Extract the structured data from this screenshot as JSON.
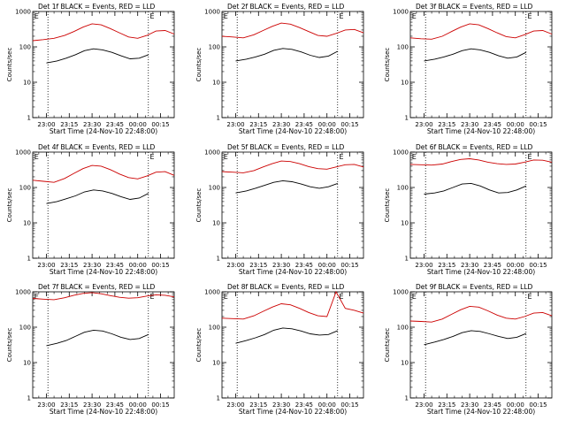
{
  "chart_data": [
    {
      "type": "line",
      "title": "Det 1f BLACK = Events, RED = LLD",
      "xlabel": "Start Time (24-Nov-10 22:48:00)",
      "ylabel": "Counts/sec",
      "yscale": "log",
      "ylim": [
        1,
        1000
      ],
      "xlim": [
        "22:51",
        "00:24"
      ],
      "xticks": [
        "23:00",
        "23:15",
        "23:30",
        "23:45",
        "00:00",
        "00:15"
      ],
      "yticks": [
        "1",
        "10",
        "100",
        "1000"
      ],
      "vlines": [
        "23:01",
        "00:07"
      ],
      "markers": [
        {
          "text": "E",
          "x": "22:52"
        },
        {
          "text": "E",
          "x": "00:08"
        }
      ],
      "series": [
        {
          "name": "BLACK = Events",
          "color": "#000000",
          "x": [
            "23:00",
            "23:07",
            "23:13",
            "23:19",
            "23:25",
            "23:31",
            "23:37",
            "23:43",
            "23:49",
            "23:55",
            "00:01",
            "00:07"
          ],
          "values": [
            35,
            40,
            48,
            60,
            78,
            88,
            82,
            70,
            56,
            46,
            48,
            60
          ]
        },
        {
          "name": "RED = LLD",
          "color": "#cc0000",
          "x": [
            "22:51",
            "22:58",
            "23:05",
            "23:12",
            "23:18",
            "23:24",
            "23:30",
            "23:36",
            "23:42",
            "23:48",
            "23:54",
            "00:00",
            "00:06",
            "00:12",
            "00:18",
            "00:24"
          ],
          "values": [
            150,
            160,
            175,
            210,
            270,
            360,
            450,
            420,
            330,
            250,
            190,
            175,
            210,
            280,
            290,
            230
          ]
        }
      ]
    },
    {
      "type": "line",
      "title": "Det 2f BLACK = Events, RED = LLD",
      "xlabel": "Start Time (24-Nov-10 22:48:00)",
      "ylabel": "Counts/sec",
      "yscale": "log",
      "ylim": [
        1,
        1000
      ],
      "xlim": [
        "22:51",
        "00:24"
      ],
      "xticks": [
        "23:00",
        "23:15",
        "23:30",
        "23:45",
        "00:00",
        "00:15"
      ],
      "yticks": [
        "1",
        "10",
        "100",
        "1000"
      ],
      "vlines": [
        "23:01",
        "00:07"
      ],
      "markers": [
        {
          "text": "E",
          "x": "22:52"
        },
        {
          "text": "E",
          "x": "00:08"
        }
      ],
      "series": [
        {
          "name": "BLACK = Events",
          "color": "#000000",
          "x": [
            "23:00",
            "23:07",
            "23:13",
            "23:19",
            "23:25",
            "23:31",
            "23:37",
            "23:43",
            "23:49",
            "23:55",
            "00:01",
            "00:07"
          ],
          "values": [
            40,
            45,
            52,
            62,
            80,
            90,
            85,
            72,
            58,
            50,
            55,
            75
          ]
        },
        {
          "name": "RED = LLD",
          "color": "#cc0000",
          "x": [
            "22:51",
            "22:58",
            "23:05",
            "23:12",
            "23:18",
            "23:24",
            "23:30",
            "23:36",
            "23:42",
            "23:48",
            "23:54",
            "00:00",
            "00:06",
            "00:12",
            "00:18",
            "00:24"
          ],
          "values": [
            200,
            190,
            180,
            220,
            290,
            380,
            470,
            440,
            350,
            270,
            210,
            200,
            240,
            300,
            310,
            250
          ]
        }
      ]
    },
    {
      "type": "line",
      "title": "Det 3f BLACK = Events, RED = LLD",
      "xlabel": "Start Time (24-Nov-10 22:48:00)",
      "ylabel": "Counts/sec",
      "yscale": "log",
      "ylim": [
        1,
        1000
      ],
      "xlim": [
        "22:51",
        "00:24"
      ],
      "xticks": [
        "23:00",
        "23:15",
        "23:30",
        "23:45",
        "00:00",
        "00:15"
      ],
      "yticks": [
        "1",
        "10",
        "100",
        "1000"
      ],
      "vlines": [
        "23:01",
        "00:07"
      ],
      "markers": [
        {
          "text": "E",
          "x": "22:52"
        },
        {
          "text": "E",
          "x": "00:08"
        }
      ],
      "series": [
        {
          "name": "BLACK = Events",
          "color": "#000000",
          "x": [
            "23:00",
            "23:07",
            "23:13",
            "23:19",
            "23:25",
            "23:31",
            "23:37",
            "23:43",
            "23:49",
            "23:55",
            "00:01",
            "00:07"
          ],
          "values": [
            40,
            45,
            52,
            62,
            78,
            88,
            82,
            70,
            56,
            48,
            52,
            70
          ]
        },
        {
          "name": "RED = LLD",
          "color": "#cc0000",
          "x": [
            "22:51",
            "22:58",
            "23:05",
            "23:12",
            "23:18",
            "23:24",
            "23:30",
            "23:36",
            "23:42",
            "23:48",
            "23:54",
            "00:00",
            "00:06",
            "00:12",
            "00:18",
            "00:24"
          ],
          "values": [
            180,
            170,
            165,
            200,
            270,
            360,
            450,
            420,
            330,
            250,
            195,
            180,
            220,
            280,
            290,
            230
          ]
        }
      ]
    },
    {
      "type": "line",
      "title": "Det 4f BLACK = Events, RED = LLD",
      "xlabel": "Start Time (24-Nov-10 22:48:00)",
      "ylabel": "Counts/sec",
      "yscale": "log",
      "ylim": [
        1,
        1000
      ],
      "xlim": [
        "22:51",
        "00:24"
      ],
      "xticks": [
        "23:00",
        "23:15",
        "23:30",
        "23:45",
        "00:00",
        "00:15"
      ],
      "yticks": [
        "1",
        "10",
        "100",
        "1000"
      ],
      "vlines": [
        "23:01",
        "00:07"
      ],
      "markers": [
        {
          "text": "E",
          "x": "22:52"
        },
        {
          "text": "E",
          "x": "00:08"
        }
      ],
      "series": [
        {
          "name": "BLACK = Events",
          "color": "#000000",
          "x": [
            "23:00",
            "23:07",
            "23:13",
            "23:19",
            "23:25",
            "23:31",
            "23:37",
            "23:43",
            "23:49",
            "23:55",
            "00:01",
            "00:07"
          ],
          "values": [
            35,
            40,
            48,
            58,
            75,
            85,
            80,
            68,
            55,
            46,
            50,
            68
          ]
        },
        {
          "name": "RED = LLD",
          "color": "#cc0000",
          "x": [
            "22:51",
            "22:58",
            "23:05",
            "23:12",
            "23:18",
            "23:24",
            "23:30",
            "23:36",
            "23:42",
            "23:48",
            "23:54",
            "00:00",
            "00:06",
            "00:12",
            "00:18",
            "00:24"
          ],
          "values": [
            160,
            150,
            140,
            180,
            250,
            340,
            420,
            400,
            320,
            240,
            190,
            175,
            210,
            270,
            280,
            220
          ]
        }
      ]
    },
    {
      "type": "line",
      "title": "Det 5f BLACK = Events, RED = LLD",
      "xlabel": "Start Time (24-Nov-10 22:48:00)",
      "ylabel": "Counts/sec",
      "yscale": "log",
      "ylim": [
        1,
        1000
      ],
      "xlim": [
        "22:51",
        "00:24"
      ],
      "xticks": [
        "23:00",
        "23:15",
        "23:30",
        "23:45",
        "00:00",
        "00:15"
      ],
      "yticks": [
        "1",
        "10",
        "100",
        "1000"
      ],
      "vlines": [
        "23:01",
        "00:07"
      ],
      "markers": [
        {
          "text": "E",
          "x": "22:52"
        },
        {
          "text": "E",
          "x": "00:08"
        }
      ],
      "series": [
        {
          "name": "BLACK = Events",
          "color": "#000000",
          "x": [
            "23:00",
            "23:07",
            "23:13",
            "23:19",
            "23:25",
            "23:31",
            "23:37",
            "23:43",
            "23:49",
            "23:55",
            "00:01",
            "00:07"
          ],
          "values": [
            70,
            80,
            95,
            115,
            140,
            155,
            145,
            125,
            105,
            95,
            105,
            130
          ]
        },
        {
          "name": "RED = LLD",
          "color": "#cc0000",
          "x": [
            "22:51",
            "22:58",
            "23:05",
            "23:12",
            "23:18",
            "23:24",
            "23:30",
            "23:36",
            "23:42",
            "23:48",
            "23:54",
            "00:00",
            "00:06",
            "00:12",
            "00:18",
            "00:24"
          ],
          "values": [
            280,
            270,
            260,
            300,
            380,
            470,
            560,
            540,
            470,
            390,
            340,
            330,
            380,
            440,
            450,
            380
          ]
        }
      ]
    },
    {
      "type": "line",
      "title": "Det 6f BLACK = Events, RED = LLD",
      "xlabel": "Start Time (24-Nov-10 22:48:00)",
      "ylabel": "Counts/sec",
      "yscale": "log",
      "ylim": [
        1,
        1000
      ],
      "xlim": [
        "22:51",
        "00:24"
      ],
      "xticks": [
        "23:00",
        "23:15",
        "23:30",
        "23:45",
        "00:00",
        "00:15"
      ],
      "yticks": [
        "1",
        "10",
        "100",
        "1000"
      ],
      "vlines": [
        "23:01",
        "00:07"
      ],
      "markers": [
        {
          "text": "E",
          "x": "22:52"
        },
        {
          "text": "E",
          "x": "00:08"
        }
      ],
      "series": [
        {
          "name": "BLACK = Events",
          "color": "#000000",
          "x": [
            "23:00",
            "23:07",
            "23:13",
            "23:19",
            "23:25",
            "23:31",
            "23:37",
            "23:43",
            "23:49",
            "23:55",
            "00:01",
            "00:07"
          ],
          "values": [
            65,
            70,
            80,
            100,
            125,
            130,
            110,
            85,
            70,
            72,
            85,
            110
          ]
        },
        {
          "name": "RED = LLD",
          "color": "#cc0000",
          "x": [
            "22:51",
            "22:58",
            "23:05",
            "23:12",
            "23:18",
            "23:24",
            "23:30",
            "23:36",
            "23:42",
            "23:48",
            "23:54",
            "00:00",
            "00:06",
            "00:12",
            "00:18",
            "00:24"
          ],
          "values": [
            450,
            440,
            430,
            460,
            540,
            620,
            650,
            600,
            520,
            470,
            450,
            460,
            520,
            600,
            590,
            520
          ]
        }
      ]
    },
    {
      "type": "line",
      "title": "Det 7f BLACK = Events, RED = LLD",
      "xlabel": "Start Time (24-Nov-10 22:48:00)",
      "ylabel": "Counts/sec",
      "yscale": "log",
      "ylim": [
        1,
        1000
      ],
      "xlim": [
        "22:51",
        "00:24"
      ],
      "xticks": [
        "23:00",
        "23:15",
        "23:30",
        "23:45",
        "00:00",
        "00:15"
      ],
      "yticks": [
        "1",
        "10",
        "100",
        "1000"
      ],
      "vlines": [
        "23:01",
        "00:07"
      ],
      "markers": [
        {
          "text": "E",
          "x": "22:52"
        },
        {
          "text": "E",
          "x": "00:08"
        }
      ],
      "series": [
        {
          "name": "BLACK = Events",
          "color": "#000000",
          "x": [
            "23:00",
            "23:07",
            "23:13",
            "23:19",
            "23:25",
            "23:31",
            "23:37",
            "23:43",
            "23:49",
            "23:55",
            "00:01",
            "00:07"
          ],
          "values": [
            30,
            35,
            42,
            55,
            72,
            82,
            78,
            65,
            52,
            45,
            48,
            62
          ]
        },
        {
          "name": "RED = LLD",
          "color": "#cc0000",
          "x": [
            "22:51",
            "22:58",
            "23:05",
            "23:12",
            "23:18",
            "23:24",
            "23:30",
            "23:36",
            "23:42",
            "23:48",
            "23:54",
            "00:00",
            "00:06",
            "00:12",
            "00:18",
            "00:24"
          ],
          "values": [
            650,
            620,
            600,
            680,
            800,
            900,
            950,
            880,
            780,
            700,
            660,
            680,
            760,
            820,
            800,
            720
          ]
        }
      ]
    },
    {
      "type": "line",
      "title": "Det 8f BLACK = Events, RED = LLD",
      "xlabel": "Start Time (24-Nov-10 22:48:00)",
      "ylabel": "Counts/sec",
      "yscale": "log",
      "ylim": [
        1,
        1000
      ],
      "xlim": [
        "22:51",
        "00:24"
      ],
      "xticks": [
        "23:00",
        "23:15",
        "23:30",
        "23:45",
        "00:00",
        "00:15"
      ],
      "yticks": [
        "1",
        "10",
        "100",
        "1000"
      ],
      "vlines": [
        "23:01",
        "00:07"
      ],
      "markers": [
        {
          "text": "E",
          "x": "22:52"
        },
        {
          "text": "E",
          "x": "00:08"
        }
      ],
      "series": [
        {
          "name": "BLACK = Events",
          "color": "#000000",
          "x": [
            "23:00",
            "23:07",
            "23:13",
            "23:19",
            "23:25",
            "23:31",
            "23:37",
            "23:43",
            "23:49",
            "23:55",
            "00:01",
            "00:07"
          ],
          "values": [
            35,
            42,
            50,
            62,
            82,
            95,
            90,
            78,
            65,
            60,
            62,
            80
          ]
        },
        {
          "name": "RED = LLD",
          "color": "#cc0000",
          "x": [
            "22:51",
            "22:58",
            "23:05",
            "23:12",
            "23:18",
            "23:24",
            "23:30",
            "23:36",
            "23:42",
            "23:48",
            "23:54",
            "00:00",
            "00:06",
            "00:12",
            "00:18",
            "00:24"
          ],
          "values": [
            180,
            175,
            170,
            210,
            280,
            370,
            460,
            430,
            340,
            260,
            210,
            200,
            1000,
            340,
            300,
            250
          ]
        }
      ]
    },
    {
      "type": "line",
      "title": "Det 9f BLACK = Events, RED = LLD",
      "xlabel": "Start Time (24-Nov-10 22:48:00)",
      "ylabel": "Counts/sec",
      "yscale": "log",
      "ylim": [
        1,
        1000
      ],
      "xlim": [
        "22:51",
        "00:24"
      ],
      "xticks": [
        "23:00",
        "23:15",
        "23:30",
        "23:45",
        "00:00",
        "00:15"
      ],
      "yticks": [
        "1",
        "10",
        "100",
        "1000"
      ],
      "vlines": [
        "23:01",
        "00:07"
      ],
      "markers": [
        {
          "text": "E",
          "x": "22:52"
        },
        {
          "text": "E",
          "x": "00:08"
        }
      ],
      "series": [
        {
          "name": "BLACK = Events",
          "color": "#000000",
          "x": [
            "23:00",
            "23:07",
            "23:13",
            "23:19",
            "23:25",
            "23:31",
            "23:37",
            "23:43",
            "23:49",
            "23:55",
            "00:01",
            "00:07"
          ],
          "values": [
            32,
            38,
            45,
            55,
            70,
            80,
            76,
            65,
            55,
            48,
            52,
            66
          ]
        },
        {
          "name": "RED = LLD",
          "color": "#cc0000",
          "x": [
            "22:51",
            "22:58",
            "23:05",
            "23:12",
            "23:18",
            "23:24",
            "23:30",
            "23:36",
            "23:42",
            "23:48",
            "23:54",
            "00:00",
            "00:06",
            "00:12",
            "00:18",
            "00:24"
          ],
          "values": [
            150,
            145,
            140,
            170,
            230,
            310,
            390,
            370,
            290,
            220,
            180,
            170,
            200,
            250,
            260,
            210
          ]
        }
      ]
    }
  ]
}
